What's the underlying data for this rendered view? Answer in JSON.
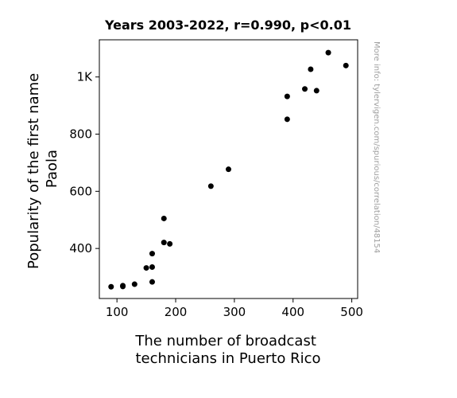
{
  "chart_data": {
    "type": "scatter",
    "title": "Years 2003-2022, r=0.990, p<0.01",
    "xlabel": [
      "The number of broadcast",
      "technicians in Puerto Rico"
    ],
    "ylabel": [
      "Popularity of the first name",
      "Paola"
    ],
    "xlim": [
      70,
      510
    ],
    "ylim": [
      225,
      1130
    ],
    "x_ticks": [
      {
        "value": 100,
        "label": "100"
      },
      {
        "value": 200,
        "label": "200"
      },
      {
        "value": 300,
        "label": "300"
      },
      {
        "value": 400,
        "label": "400"
      },
      {
        "value": 500,
        "label": "500"
      }
    ],
    "y_ticks": [
      {
        "value": 400,
        "label": "400"
      },
      {
        "value": 600,
        "label": "600"
      },
      {
        "value": 800,
        "label": "800"
      },
      {
        "value": 1000,
        "label": "1K"
      }
    ],
    "grid": false,
    "point_color": "#000000",
    "watermark": "More info: tylervigen.com/spurious/correlation/48154",
    "points": [
      {
        "x": 90,
        "y": 266
      },
      {
        "x": 110,
        "y": 270
      },
      {
        "x": 110,
        "y": 267
      },
      {
        "x": 130,
        "y": 275
      },
      {
        "x": 150,
        "y": 332
      },
      {
        "x": 160,
        "y": 335
      },
      {
        "x": 160,
        "y": 283
      },
      {
        "x": 160,
        "y": 382
      },
      {
        "x": 180,
        "y": 505
      },
      {
        "x": 180,
        "y": 421
      },
      {
        "x": 190,
        "y": 416
      },
      {
        "x": 260,
        "y": 618
      },
      {
        "x": 290,
        "y": 677
      },
      {
        "x": 390,
        "y": 932
      },
      {
        "x": 390,
        "y": 852
      },
      {
        "x": 420,
        "y": 958
      },
      {
        "x": 430,
        "y": 1027
      },
      {
        "x": 440,
        "y": 952
      },
      {
        "x": 460,
        "y": 1085
      },
      {
        "x": 490,
        "y": 1040
      }
    ]
  }
}
